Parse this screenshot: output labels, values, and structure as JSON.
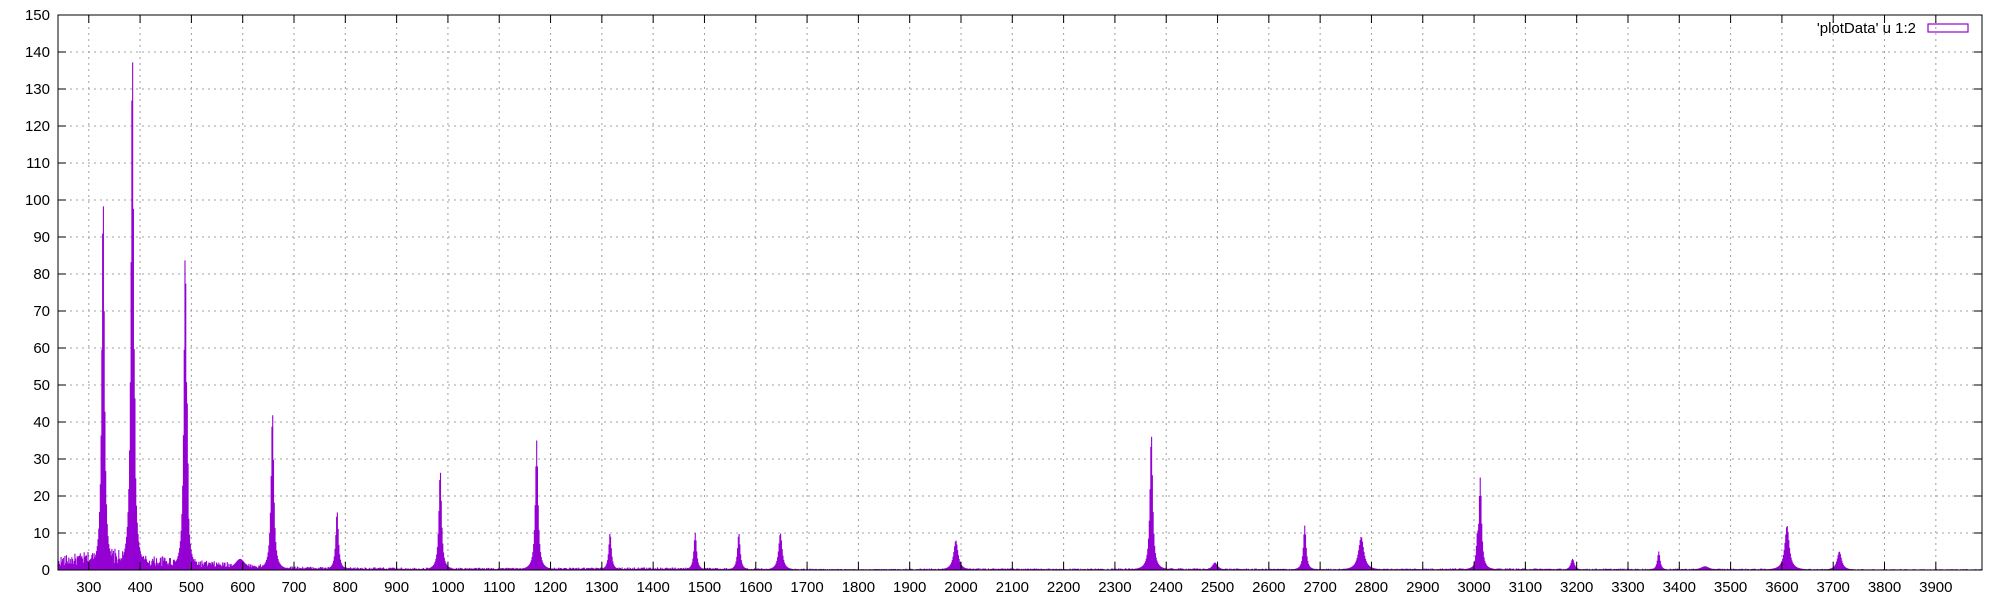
{
  "chart_data": {
    "type": "bar",
    "title": "",
    "xlabel": "",
    "ylabel": "",
    "xlim": [
      240,
      3990
    ],
    "ylim": [
      0,
      150
    ],
    "x_ticks": [
      300,
      400,
      500,
      600,
      700,
      800,
      900,
      1000,
      1100,
      1200,
      1300,
      1400,
      1500,
      1600,
      1700,
      1800,
      1900,
      2000,
      2100,
      2200,
      2300,
      2400,
      2500,
      2600,
      2700,
      2800,
      2900,
      3000,
      3100,
      3200,
      3300,
      3400,
      3500,
      3600,
      3700,
      3800,
      3900
    ],
    "y_ticks": [
      0,
      10,
      20,
      30,
      40,
      50,
      60,
      70,
      80,
      90,
      100,
      110,
      120,
      130,
      140,
      150
    ],
    "grid": true,
    "legend_position": "top-right",
    "colors": {
      "series": "#9400d3",
      "grid": "#a0a0a0",
      "axis": "#000000"
    },
    "series": [
      {
        "name": "'plotData' u 1:2",
        "style": "impulses",
        "baseline": [
          [
            240,
            3
          ],
          [
            300,
            4
          ],
          [
            340,
            5
          ],
          [
            370,
            4
          ],
          [
            420,
            3
          ],
          [
            470,
            3
          ],
          [
            530,
            2
          ],
          [
            600,
            1.5
          ],
          [
            700,
            0.8
          ],
          [
            800,
            0.6
          ],
          [
            1000,
            0.5
          ],
          [
            1200,
            0.5
          ],
          [
            1400,
            0.6
          ],
          [
            1600,
            0.4
          ],
          [
            1800,
            0.2
          ],
          [
            2000,
            0.4
          ],
          [
            2200,
            0.3
          ],
          [
            2400,
            0.4
          ],
          [
            2600,
            0.3
          ],
          [
            2800,
            0.3
          ],
          [
            3000,
            0.4
          ],
          [
            3200,
            0.3
          ],
          [
            3400,
            0.3
          ],
          [
            3600,
            0.3
          ],
          [
            3800,
            0.2
          ],
          [
            3990,
            0.2
          ]
        ],
        "peaks": [
          {
            "x": 328,
            "y": 101,
            "w": 3
          },
          {
            "x": 385,
            "y": 141,
            "w": 3
          },
          {
            "x": 389,
            "y": 58,
            "w": 2
          },
          {
            "x": 488,
            "y": 86,
            "w": 3
          },
          {
            "x": 492,
            "y": 45,
            "w": 2
          },
          {
            "x": 595,
            "y": 3,
            "w": 12
          },
          {
            "x": 658,
            "y": 43,
            "w": 3
          },
          {
            "x": 784,
            "y": 16,
            "w": 3
          },
          {
            "x": 985,
            "y": 27,
            "w": 3
          },
          {
            "x": 1173,
            "y": 35,
            "w": 3
          },
          {
            "x": 1316,
            "y": 10,
            "w": 3
          },
          {
            "x": 1482,
            "y": 10,
            "w": 3
          },
          {
            "x": 1567,
            "y": 10,
            "w": 3
          },
          {
            "x": 1648,
            "y": 10,
            "w": 4
          },
          {
            "x": 1990,
            "y": 8,
            "w": 5
          },
          {
            "x": 2371,
            "y": 37,
            "w": 3
          },
          {
            "x": 2495,
            "y": 2,
            "w": 6
          },
          {
            "x": 2670,
            "y": 12,
            "w": 3
          },
          {
            "x": 2780,
            "y": 9,
            "w": 6
          },
          {
            "x": 3012,
            "y": 25,
            "w": 3
          },
          {
            "x": 3007,
            "y": 11,
            "w": 3
          },
          {
            "x": 3192,
            "y": 3,
            "w": 4
          },
          {
            "x": 3360,
            "y": 5,
            "w": 3
          },
          {
            "x": 3450,
            "y": 1,
            "w": 10
          },
          {
            "x": 3610,
            "y": 12,
            "w": 5
          },
          {
            "x": 3712,
            "y": 5,
            "w": 5
          }
        ]
      }
    ]
  }
}
